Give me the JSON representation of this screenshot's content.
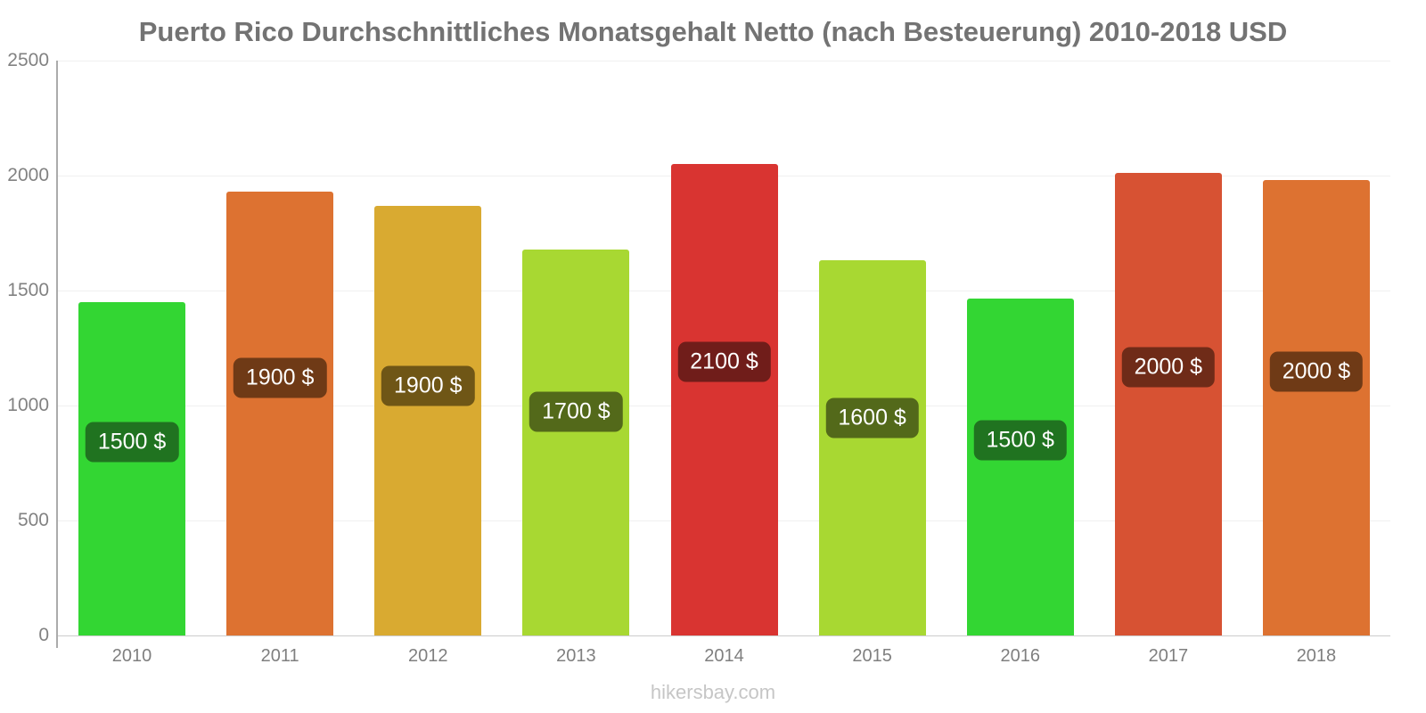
{
  "footer": {
    "text": "hikersbay.com"
  },
  "chart_data": {
    "type": "bar",
    "title": "Puerto Rico Durchschnittliches Monatsgehalt Netto (nach Besteuerung) 2010-2018 USD",
    "xlabel": "",
    "ylabel": "",
    "ylim": [
      0,
      2500
    ],
    "yticks": [
      0,
      500,
      1000,
      1500,
      2000,
      2500
    ],
    "grid": "faint horizontal gridlines at each y tick",
    "legend_position": "none",
    "categories": [
      "2010",
      "2011",
      "2012",
      "2013",
      "2014",
      "2015",
      "2016",
      "2017",
      "2018"
    ],
    "values": [
      1450,
      1930,
      1870,
      1680,
      2050,
      1630,
      1465,
      2010,
      1980
    ],
    "bar_value_labels": [
      "1500 $",
      "1900 $",
      "1900 $",
      "1700 $",
      "2100 $",
      "1600 $",
      "1500 $",
      "2000 $",
      "2000 $"
    ],
    "bar_colors": [
      "#33d633",
      "#dd7231",
      "#d9aa31",
      "#a8d832",
      "#d93431",
      "#a8d832",
      "#33d633",
      "#d75233",
      "#dd7231"
    ],
    "bar_label_box_colors": [
      "#207320",
      "#6f3a16",
      "#6f5616",
      "#53691a",
      "#701d1a",
      "#53691a",
      "#207320",
      "#6f2b18",
      "#6f3a16"
    ],
    "text_colors": {
      "title": "#737373",
      "axis_ticks": "#828282",
      "bar_label_text": "#ffffff",
      "watermark": "#c6c6c6"
    }
  }
}
